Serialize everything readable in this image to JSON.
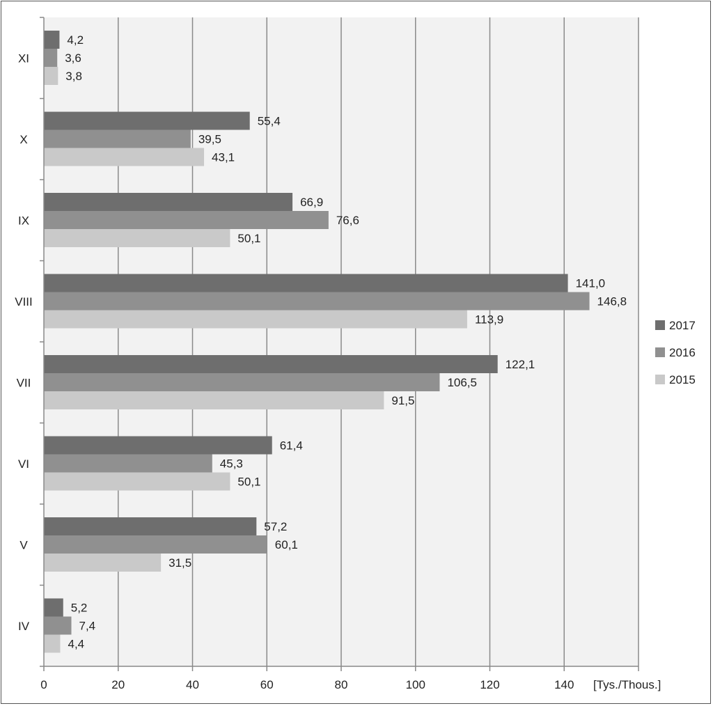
{
  "chart_data": {
    "type": "bar",
    "orientation": "horizontal",
    "categories": [
      "IV",
      "V",
      "VI",
      "VII",
      "VIII",
      "IX",
      "X",
      "XI"
    ],
    "series": [
      {
        "name": "2017",
        "color": "#6e6e6e",
        "values": [
          5.2,
          57.2,
          61.4,
          122.1,
          141.0,
          66.9,
          55.4,
          4.2
        ],
        "labels": [
          "5,2",
          "57,2",
          "61,4",
          "122,1",
          "141,0",
          "66,9",
          "55,4",
          "4,2"
        ]
      },
      {
        "name": "2016",
        "color": "#909090",
        "values": [
          7.4,
          60.1,
          45.3,
          106.5,
          146.8,
          76.6,
          39.5,
          3.6
        ],
        "labels": [
          "7,4",
          "60,1",
          "45,3",
          "106,5",
          "146,8",
          "76,6",
          "39,5",
          "3,6"
        ]
      },
      {
        "name": "2015",
        "color": "#c9c9c9",
        "values": [
          4.4,
          31.5,
          50.1,
          91.5,
          113.9,
          50.1,
          43.1,
          3.8
        ],
        "labels": [
          "4,4",
          "31,5",
          "50,1",
          "91,5",
          "113,9",
          "50,1",
          "43,1",
          "3,8"
        ]
      }
    ],
    "xlim": [
      0,
      160
    ],
    "xticks": [
      0,
      20,
      40,
      60,
      80,
      100,
      120,
      140
    ],
    "xlabel": "[Tys./Thous.]",
    "grid": true,
    "legend_position": "right",
    "plot_background": "#f2f2f2",
    "gridline_color": "#8a8a8a"
  }
}
